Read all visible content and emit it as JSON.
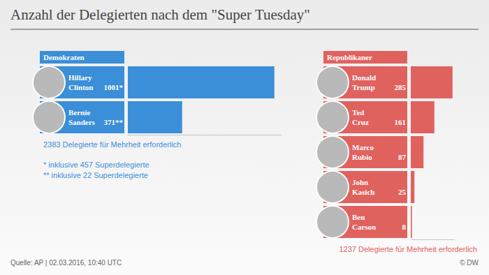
{
  "title": "Anzahl der Delegierten nach dem \"Super Tuesday\"",
  "source": "Quelle: AP | 02.03.2016, 10:40 UTC",
  "credit": "© DW",
  "chart_data": [
    {
      "type": "bar",
      "title": "Demokraten",
      "orientation": "horizontal",
      "categories": [
        "Hillary Clinton",
        "Bernie Sanders"
      ],
      "values": [
        1001,
        371
      ],
      "value_labels": [
        "1001*",
        "371**"
      ],
      "color": "#3b8ed8",
      "xlim": [
        0,
        1050
      ],
      "data_labels": true,
      "tick_labels": false,
      "grid": false,
      "annotations": [
        "2383 Delegierte für Mehrheit erforderlich",
        "* inklusive 457 Superdelegierte",
        "** inklusive 22 Superdelegierte"
      ]
    },
    {
      "type": "bar",
      "title": "Republikaner",
      "orientation": "horizontal",
      "categories": [
        "Donald Trump",
        "Ted Cruz",
        "Marco Rubio",
        "John Kasich",
        "Ben Carson"
      ],
      "values": [
        285,
        161,
        87,
        25,
        8
      ],
      "color": "#e0625f",
      "xlim": [
        0,
        300
      ],
      "data_labels": true,
      "tick_labels": false,
      "grid": false,
      "annotations": [
        "1237 Delegierte für Mehrheit erforderlich"
      ]
    }
  ]
}
